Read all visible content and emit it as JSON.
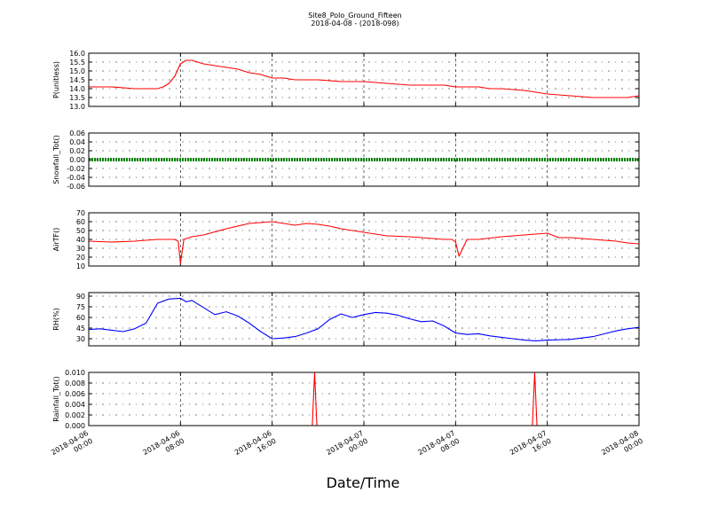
{
  "title": "Site8_Polo_Ground_Fifteen",
  "subtitle": "2018-04-08 - (2018-098)",
  "xlabel": "Date/Time",
  "x_ticks": [
    "2018-04-06\n00:00",
    "2018-04-06\n08:00",
    "2018-04-06\n16:00",
    "2018-04-07\n00:00",
    "2018-04-07\n08:00",
    "2018-04-07\n16:00",
    "2018-04-08\n00:00"
  ],
  "x_range_hours": [
    0,
    48
  ],
  "chart_data": [
    {
      "type": "line",
      "ylabel": "P(unitless)",
      "ylim": [
        13.0,
        16.0
      ],
      "yticks": [
        "13.0",
        "13.5",
        "14.0",
        "14.5",
        "15.0",
        "15.5",
        "16.0"
      ],
      "grid": true,
      "color": "#ff0000",
      "x_hours": [
        0,
        2,
        4,
        5,
        6,
        6.5,
        7,
        7.5,
        8,
        8.5,
        9,
        10,
        11,
        12,
        13,
        14,
        15,
        16,
        17,
        18,
        20,
        22,
        24,
        26,
        28,
        30,
        31,
        32,
        34,
        35,
        36,
        38,
        40,
        42,
        44,
        46,
        47,
        48
      ],
      "values": [
        14.1,
        14.1,
        14.0,
        14.0,
        14.0,
        14.1,
        14.3,
        14.7,
        15.4,
        15.6,
        15.6,
        15.4,
        15.3,
        15.2,
        15.1,
        14.9,
        14.8,
        14.6,
        14.6,
        14.5,
        14.5,
        14.4,
        14.4,
        14.3,
        14.2,
        14.2,
        14.2,
        14.1,
        14.1,
        14.0,
        14.0,
        13.9,
        13.7,
        13.6,
        13.5,
        13.5,
        13.5,
        13.6
      ]
    },
    {
      "type": "line",
      "ylabel": "Snowfall_Tot()",
      "ylim": [
        -0.06,
        0.06
      ],
      "yticks": [
        "-0.06",
        "-0.04",
        "-0.02",
        "0.00",
        "0.02",
        "0.04",
        "0.06"
      ],
      "grid": true,
      "color": "#008000",
      "marker": "dot",
      "x_hours": [
        0,
        48
      ],
      "values": [
        0.0,
        0.0
      ]
    },
    {
      "type": "line",
      "ylabel": "AirTF()",
      "ylim": [
        10,
        70
      ],
      "yticks": [
        "10",
        "20",
        "30",
        "40",
        "50",
        "60",
        "70"
      ],
      "grid": true,
      "color": "#ff0000",
      "x_hours": [
        0,
        2,
        4,
        6,
        7.5,
        7.8,
        8.0,
        8.3,
        9,
        10,
        12,
        14,
        16,
        17,
        18,
        19,
        20,
        21,
        22,
        24,
        26,
        28,
        30,
        31,
        31.7,
        32.0,
        32.3,
        33,
        34,
        36,
        38,
        39,
        40,
        41,
        42,
        44,
        46,
        47,
        48
      ],
      "values": [
        38,
        37,
        38,
        40,
        40,
        38,
        13,
        40,
        43,
        45,
        52,
        58,
        60,
        58,
        56,
        58,
        57,
        55,
        52,
        48,
        44,
        43,
        41,
        40,
        40,
        37,
        21,
        40,
        40,
        43,
        45,
        46,
        47,
        42,
        42,
        40,
        38,
        36,
        35
      ]
    },
    {
      "type": "line",
      "ylabel": "RH(%)",
      "ylim": [
        20,
        95
      ],
      "yticks": [
        "30",
        "45",
        "60",
        "75",
        "90"
      ],
      "grid": true,
      "color": "#0000ff",
      "x_hours": [
        0,
        1,
        2,
        3,
        4,
        5,
        5.5,
        6,
        7,
        8,
        8.5,
        9,
        10,
        11,
        12,
        13,
        14,
        15,
        16,
        17,
        18,
        19,
        20,
        21,
        22,
        23,
        24,
        25,
        26,
        27,
        28,
        29,
        30,
        31,
        32,
        33,
        34,
        35,
        36,
        37,
        38,
        39,
        40,
        42,
        43,
        44,
        45,
        46,
        47,
        48
      ],
      "values": [
        43,
        44,
        42,
        40,
        44,
        52,
        66,
        80,
        86,
        87,
        82,
        84,
        74,
        64,
        68,
        62,
        52,
        40,
        30,
        31,
        33,
        38,
        44,
        57,
        65,
        60,
        64,
        67,
        66,
        63,
        58,
        54,
        55,
        48,
        38,
        36,
        37,
        34,
        32,
        30,
        28,
        27,
        28,
        29,
        31,
        33,
        37,
        41,
        44,
        46
      ]
    },
    {
      "type": "line",
      "ylabel": "Rainfall_Tot()",
      "ylim": [
        0.0,
        0.01
      ],
      "yticks": [
        "0.000",
        "0.002",
        "0.004",
        "0.006",
        "0.008",
        "0.010"
      ],
      "grid": true,
      "color": "#ff0000",
      "x_hours": [
        0,
        19.5,
        19.7,
        19.9,
        38.7,
        38.9,
        39.1,
        48
      ],
      "values": [
        0,
        0,
        0.01,
        0,
        0,
        0.01,
        0,
        0
      ]
    }
  ]
}
